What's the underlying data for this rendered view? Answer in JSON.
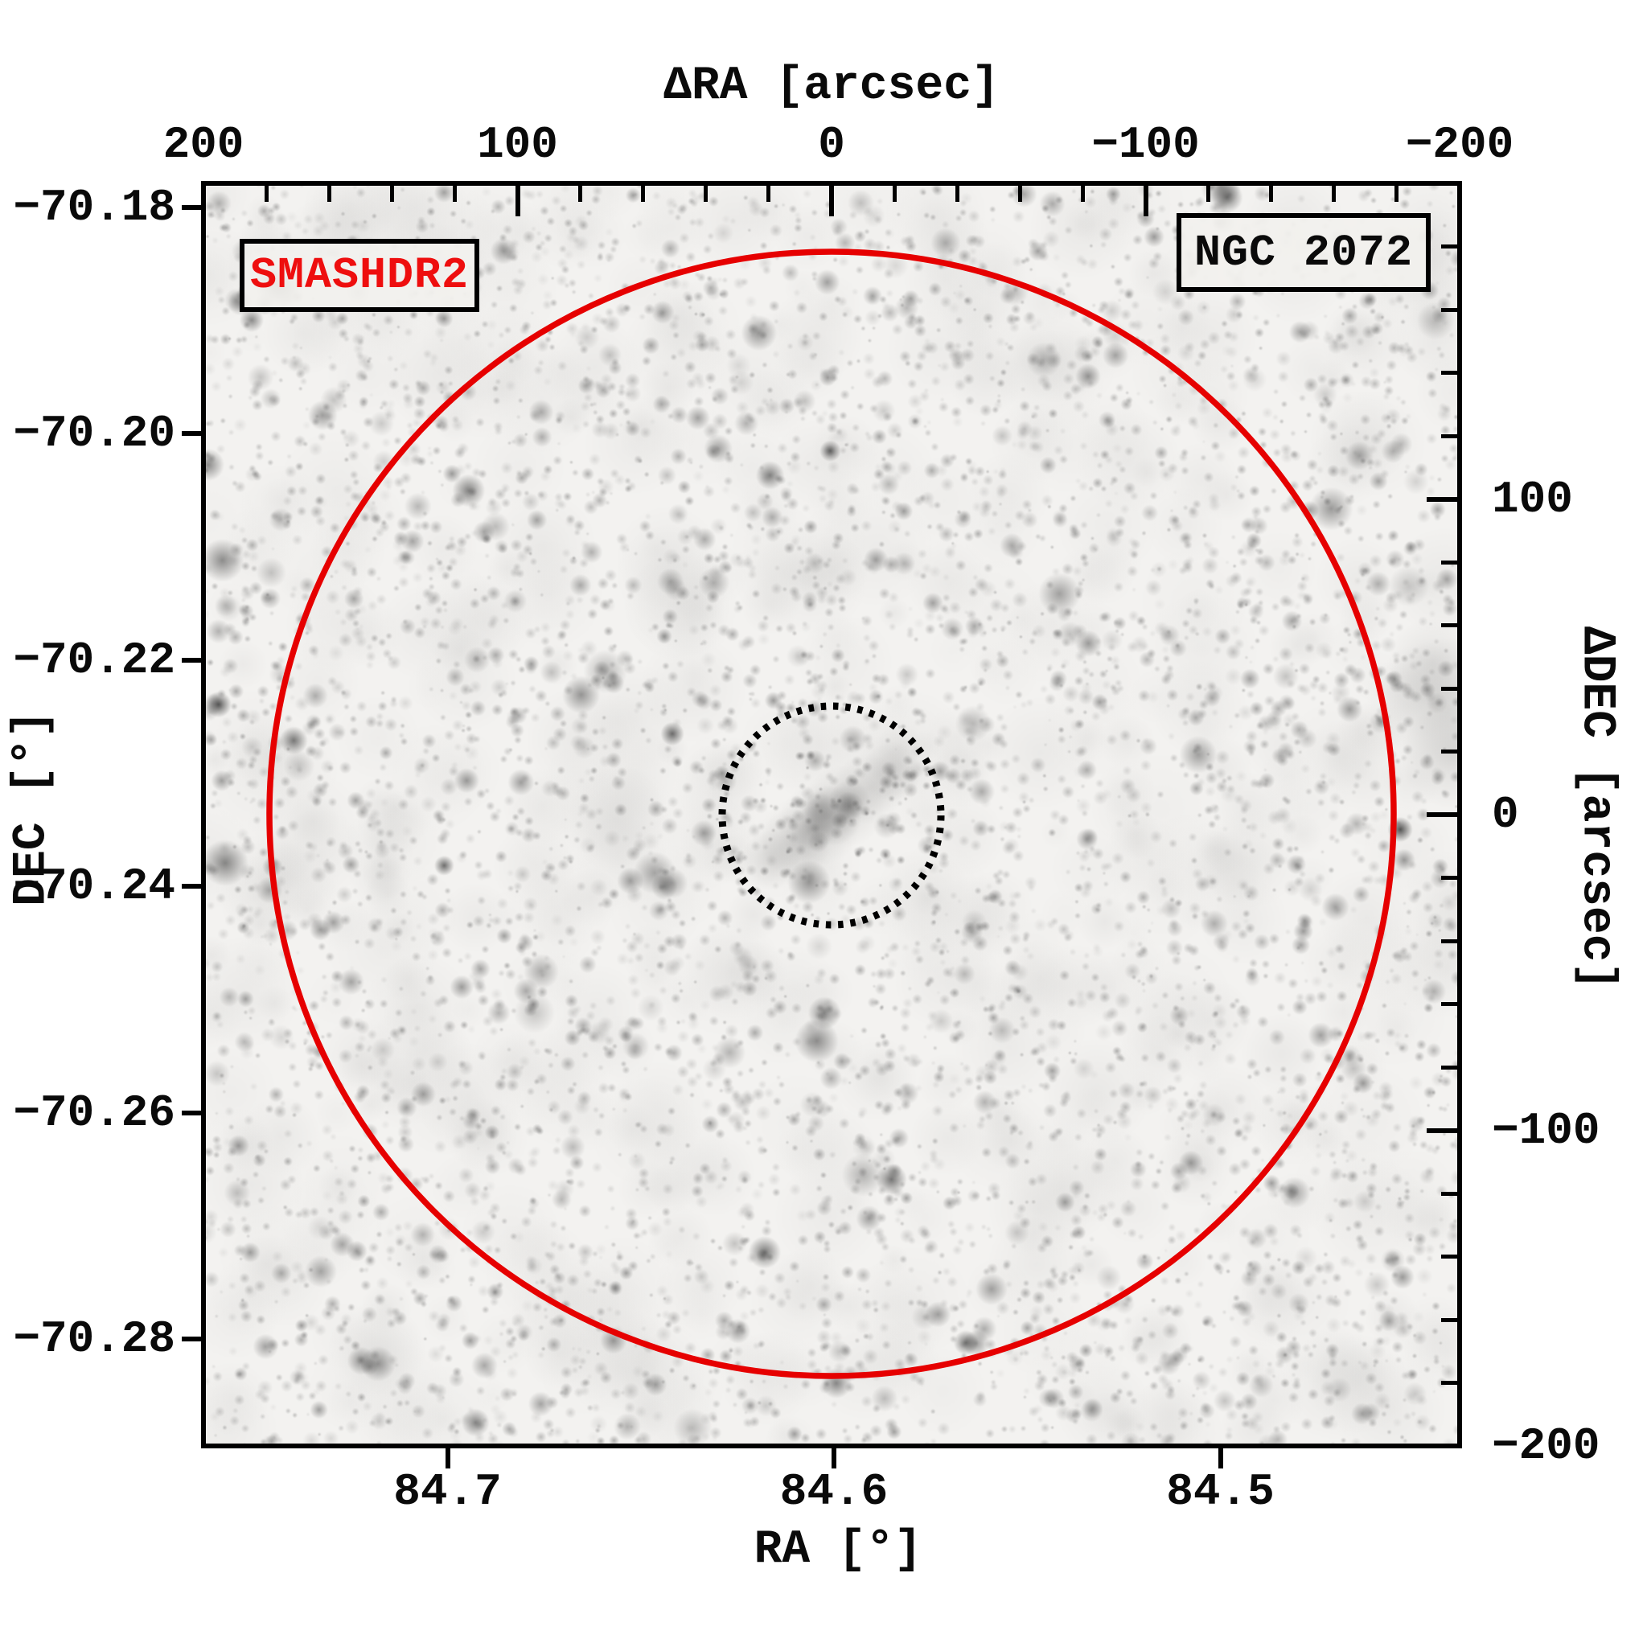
{
  "figure": {
    "object": "NGC 2072",
    "survey": "SMASHDR2"
  },
  "axes": {
    "top": {
      "label": "ΔRA [arcsec]",
      "ticks": [
        {
          "v": 200,
          "label": "200"
        },
        {
          "v": 100,
          "label": "100"
        },
        {
          "v": 0,
          "label": "0"
        },
        {
          "v": -100,
          "label": "−100"
        },
        {
          "v": -200,
          "label": "−200"
        }
      ],
      "minor_step": 20,
      "range": [
        200,
        -200
      ]
    },
    "bottom": {
      "label": "RA [°]",
      "ticks": [
        {
          "v": 84.7,
          "label": "84.7"
        },
        {
          "v": 84.6,
          "label": "84.6"
        },
        {
          "v": 84.5,
          "label": "84.5"
        }
      ],
      "range": [
        84.76,
        84.43
      ]
    },
    "left": {
      "label": "DEC [°]",
      "ticks": [
        {
          "v": -70.18,
          "label": "−70.18"
        },
        {
          "v": -70.2,
          "label": "−70.20"
        },
        {
          "v": -70.22,
          "label": "−70.22"
        },
        {
          "v": -70.24,
          "label": "−70.24"
        },
        {
          "v": -70.26,
          "label": "−70.26"
        },
        {
          "v": -70.28,
          "label": "−70.28"
        }
      ],
      "range": [
        -70.178,
        -70.29
      ]
    },
    "right": {
      "label": "ΔDEC [arcsec]",
      "ticks": [
        {
          "v": 100,
          "label": "100"
        },
        {
          "v": 0,
          "label": "0"
        },
        {
          "v": -100,
          "label": "−100"
        },
        {
          "v": -200,
          "label": "−200"
        }
      ],
      "minor_step": 20,
      "range": [
        200,
        -200
      ]
    }
  },
  "colors": {
    "tidal_circle_red": "#e60000",
    "badge_text_red": "#ee0e0e",
    "frame_black": "#000000",
    "sky_background": "#f3f2f0",
    "star_gray": "#3a3a3a"
  },
  "chart_data": {
    "type": "heatmap",
    "description": "Grayscale star-field finder chart of the star cluster NGC 2072 from the SMASH DR2 survey; inverted grayscale sky image with two circular overlays centered on the cluster.",
    "title": "NGC 2072",
    "survey_label": "SMASHDR2",
    "axes": {
      "top": {
        "label": "ΔRA [arcsec]",
        "tick_values": [
          200,
          100,
          0,
          -100,
          -200
        ],
        "minor_tick_step_arcsec": 20,
        "range": [
          200,
          -200
        ],
        "ticks_direction": "in"
      },
      "right": {
        "label": "ΔDEC [arcsec]",
        "tick_values": [
          100,
          0,
          -100,
          -200
        ],
        "minor_tick_step_arcsec": 20,
        "range": [
          200,
          -200
        ],
        "ticks_direction": "in"
      },
      "bottom": {
        "label": "RA [°]",
        "tick_values": [
          84.7,
          84.6,
          84.5
        ],
        "range": [
          84.76,
          84.43
        ],
        "ticks_direction": "out"
      },
      "left": {
        "label": "DEC [°]",
        "tick_values": [
          -70.18,
          -70.2,
          -70.22,
          -70.24,
          -70.26,
          -70.28
        ],
        "range": [
          -70.178,
          -70.29
        ],
        "ticks_direction": "out"
      }
    },
    "overlays": [
      {
        "name": "outer-aperture",
        "shape": "circle",
        "style": "solid",
        "color": "#e60000",
        "center_arcsec": [
          0,
          0
        ],
        "radius_arcsec": 179
      },
      {
        "name": "cluster-aperture",
        "shape": "circle",
        "style": "dotted",
        "color": "#000000",
        "center_arcsec": [
          0,
          0
        ],
        "radius_arcsec": 35
      }
    ],
    "cluster_center": {
      "ra_deg": 84.6,
      "dec_deg": -70.234,
      "delta_ra_arcsec": 0,
      "delta_dec_arcsec": 0
    },
    "grid": false,
    "legend": false
  }
}
